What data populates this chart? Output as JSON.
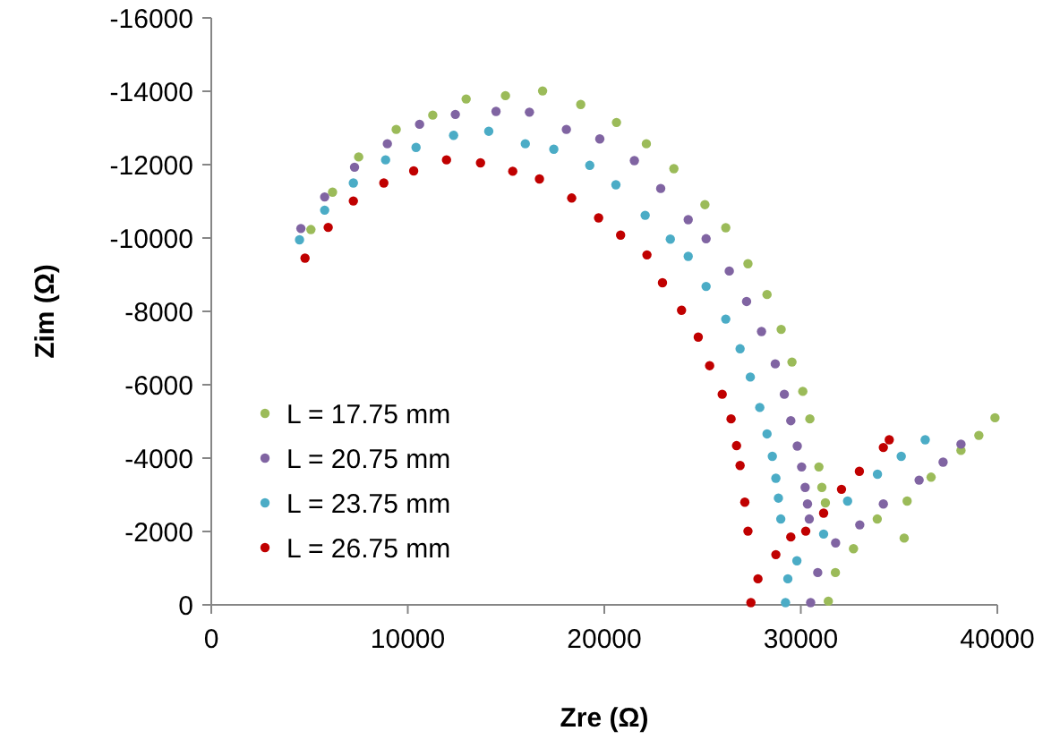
{
  "chart_data": {
    "type": "scatter",
    "xlabel": "Zre (Ω)",
    "ylabel": "Zim (Ω)",
    "xlim": [
      0,
      40000
    ],
    "xticks": [
      0,
      10000,
      20000,
      30000,
      40000
    ],
    "ylim": [
      0,
      -16000
    ],
    "yticks": [
      0,
      -2000,
      -4000,
      -6000,
      -8000,
      -10000,
      -12000,
      -14000,
      -16000
    ],
    "grid": false,
    "legend": "bottom left",
    "marker": "circle",
    "series": [
      {
        "name": "L = 17.75 mm",
        "color": "#9bbb59",
        "x": [
          5070,
          6170,
          7500,
          9410,
          11270,
          12970,
          14970,
          16860,
          18800,
          20620,
          22140,
          23540,
          25120,
          26180,
          27310,
          28280,
          29000,
          29550,
          30100,
          30460,
          30920,
          31070,
          31250,
          31400,
          31760,
          32680,
          33890,
          35410,
          36630,
          38150,
          39060,
          39880,
          35260
        ],
        "values": [
          -10230,
          -11250,
          -12210,
          -12960,
          -13350,
          -13790,
          -13880,
          -14010,
          -13640,
          -13150,
          -12570,
          -11890,
          -10910,
          -10280,
          -9300,
          -8460,
          -7510,
          -6620,
          -5820,
          -5070,
          -3760,
          -3200,
          -2780,
          -100,
          -880,
          -1530,
          -2340,
          -2830,
          -3480,
          -4210,
          -4620,
          -5100,
          -1820
        ]
      },
      {
        "name": "L = 20.75 mm",
        "color": "#8064a2",
        "x": [
          4560,
          5770,
          7290,
          8960,
          10600,
          12420,
          14490,
          16190,
          18070,
          19770,
          21530,
          22870,
          24270,
          25180,
          26360,
          27240,
          28000,
          28700,
          29160,
          29490,
          29820,
          30040,
          30220,
          30340,
          30430,
          30500,
          30860,
          31770,
          33000,
          34200,
          36020,
          37240,
          38150
        ],
        "values": [
          -10260,
          -11120,
          -11930,
          -12570,
          -13100,
          -13370,
          -13450,
          -13430,
          -12960,
          -12700,
          -12110,
          -11350,
          -10500,
          -9980,
          -9100,
          -8270,
          -7450,
          -6570,
          -5740,
          -5020,
          -4330,
          -3760,
          -3200,
          -2750,
          -2340,
          -60,
          -880,
          -1690,
          -2180,
          -2750,
          -3400,
          -3890,
          -4380
        ]
      },
      {
        "name": "L = 23.75 mm",
        "color": "#4bacc6",
        "x": [
          4490,
          5770,
          7230,
          8870,
          10420,
          12330,
          14120,
          15980,
          17430,
          19260,
          20590,
          22080,
          23360,
          24270,
          25180,
          26180,
          26910,
          27430,
          27910,
          28280,
          28550,
          28730,
          28860,
          28980,
          29220,
          29340,
          29800,
          31160,
          32380,
          33900,
          35110,
          36330
        ],
        "values": [
          -9950,
          -10760,
          -11500,
          -12130,
          -12470,
          -12800,
          -12910,
          -12570,
          -12420,
          -11980,
          -11450,
          -10620,
          -9970,
          -9500,
          -8680,
          -7790,
          -6980,
          -6210,
          -5380,
          -4660,
          -4050,
          -3450,
          -2910,
          -2340,
          -60,
          -710,
          -1200,
          -1930,
          -2830,
          -3560,
          -4050,
          -4500
        ]
      },
      {
        "name": "L = 26.75 mm",
        "color": "#c00000",
        "x": [
          4770,
          5950,
          7230,
          8780,
          10300,
          11970,
          13700,
          15340,
          16700,
          18340,
          19710,
          20830,
          22170,
          22960,
          23930,
          24780,
          25360,
          26000,
          26450,
          26730,
          26910,
          27150,
          27310,
          27460,
          27820,
          28730,
          29490,
          30250,
          31160,
          32070,
          32980,
          34200,
          34500
        ],
        "values": [
          -9450,
          -10290,
          -11010,
          -11500,
          -11830,
          -12130,
          -12050,
          -11820,
          -11610,
          -11090,
          -10550,
          -10080,
          -9540,
          -8780,
          -8030,
          -7300,
          -6520,
          -5740,
          -5070,
          -4340,
          -3800,
          -2800,
          -2010,
          -60,
          -710,
          -1370,
          -1850,
          -2010,
          -2500,
          -3150,
          -3640,
          -4290,
          -4500
        ]
      }
    ]
  }
}
